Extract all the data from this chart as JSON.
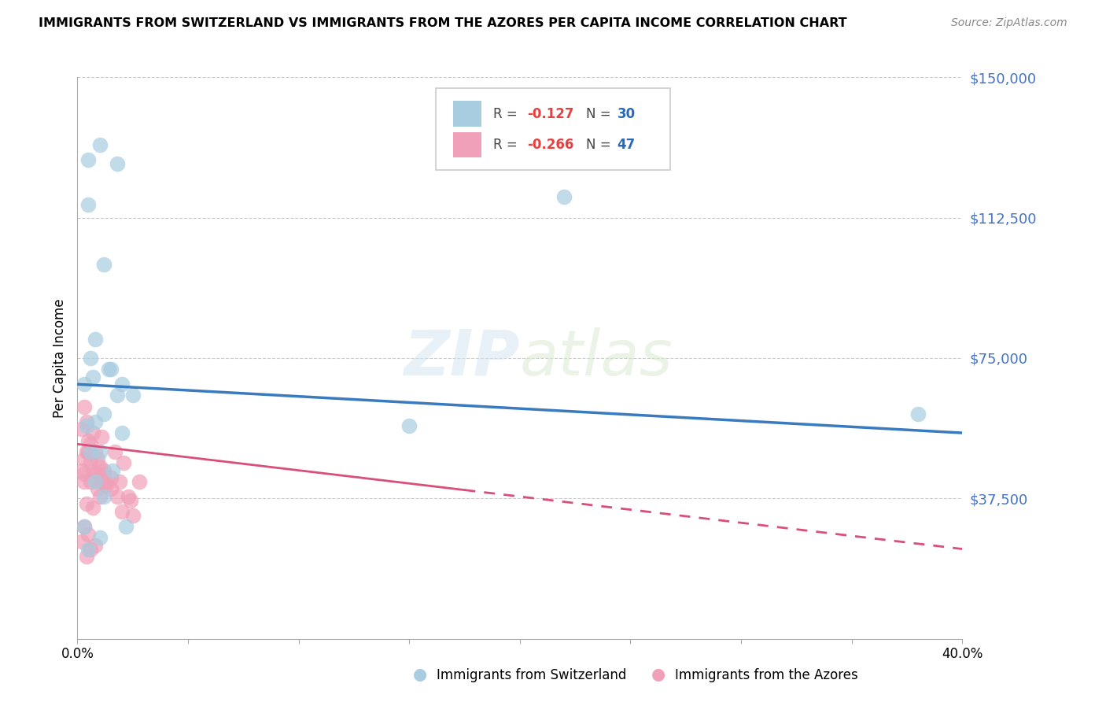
{
  "title": "IMMIGRANTS FROM SWITZERLAND VS IMMIGRANTS FROM THE AZORES PER CAPITA INCOME CORRELATION CHART",
  "source": "Source: ZipAtlas.com",
  "ylabel": "Per Capita Income",
  "xlim": [
    0.0,
    0.4
  ],
  "ylim": [
    0,
    150000
  ],
  "ytick_vals": [
    37500,
    75000,
    112500,
    150000
  ],
  "xtick_vals": [
    0.0,
    0.05,
    0.1,
    0.15,
    0.2,
    0.25,
    0.3,
    0.35,
    0.4
  ],
  "series1_name": "Immigrants from Switzerland",
  "series1_color": "#a8cce0",
  "series1_R": -0.127,
  "series1_N": 30,
  "series1_line_color": "#3a7abf",
  "series2_name": "Immigrants from the Azores",
  "series2_color": "#f0a0b8",
  "series2_R": -0.266,
  "series2_N": 47,
  "series2_line_color": "#d94f7a",
  "background_color": "#ffffff",
  "sw_x": [
    0.005,
    0.01,
    0.018,
    0.005,
    0.012,
    0.008,
    0.006,
    0.015,
    0.02,
    0.003,
    0.007,
    0.014,
    0.025,
    0.22,
    0.012,
    0.008,
    0.018,
    0.004,
    0.01,
    0.38,
    0.006,
    0.02,
    0.008,
    0.012,
    0.003,
    0.15,
    0.01,
    0.005,
    0.022,
    0.016
  ],
  "sw_y": [
    128000,
    132000,
    127000,
    116000,
    100000,
    80000,
    75000,
    72000,
    68000,
    68000,
    70000,
    72000,
    65000,
    118000,
    60000,
    58000,
    65000,
    57000,
    50000,
    60000,
    50000,
    55000,
    42000,
    38000,
    30000,
    57000,
    27000,
    24000,
    30000,
    45000
  ],
  "az_x": [
    0.003,
    0.004,
    0.005,
    0.006,
    0.007,
    0.008,
    0.009,
    0.01,
    0.011,
    0.012,
    0.013,
    0.002,
    0.004,
    0.006,
    0.008,
    0.003,
    0.005,
    0.007,
    0.009,
    0.011,
    0.013,
    0.015,
    0.017,
    0.019,
    0.021,
    0.023,
    0.003,
    0.006,
    0.009,
    0.012,
    0.015,
    0.018,
    0.024,
    0.028,
    0.004,
    0.007,
    0.01,
    0.02,
    0.025,
    0.003,
    0.005,
    0.008,
    0.002,
    0.004,
    0.006,
    0.002,
    0.003
  ],
  "az_y": [
    62000,
    58000,
    53000,
    52000,
    55000,
    50000,
    48000,
    46000,
    54000,
    44000,
    42000,
    56000,
    50000,
    47000,
    44000,
    42000,
    50000,
    45000,
    43000,
    42000,
    41000,
    40000,
    50000,
    42000,
    47000,
    38000,
    44000,
    42000,
    40000,
    45000,
    43000,
    38000,
    37000,
    42000,
    36000,
    35000,
    38000,
    34000,
    33000,
    30000,
    28000,
    25000,
    26000,
    22000,
    24000,
    45000,
    48000
  ]
}
